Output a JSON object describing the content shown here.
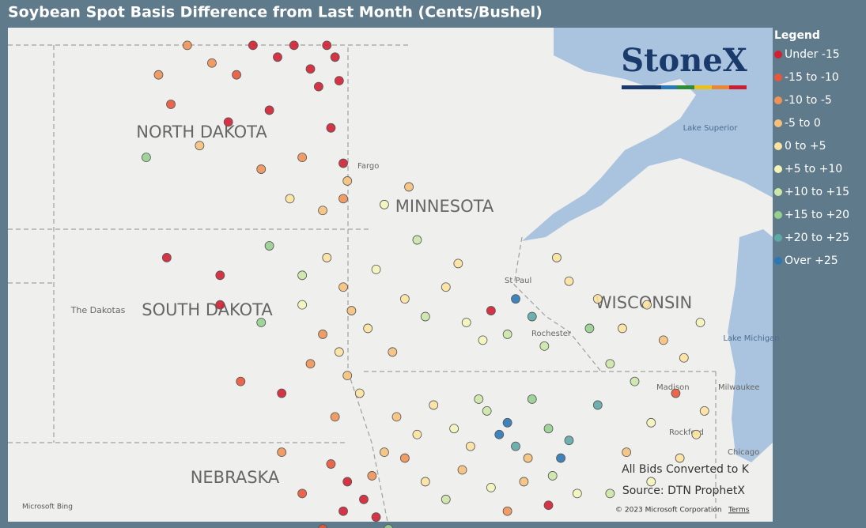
{
  "title": "Soybean Spot Basis Difference from Last Month (Cents/Bushel)",
  "legend": {
    "title": "Legend",
    "items": [
      {
        "label": "Under -15",
        "color": "#d21f32"
      },
      {
        "label": "-15 to -10",
        "color": "#e8563b"
      },
      {
        "label": "-10 to -5",
        "color": "#f09257"
      },
      {
        "label": "-5 to 0",
        "color": "#f6c07c"
      },
      {
        "label": "0 to +5",
        "color": "#fbe29e"
      },
      {
        "label": "+5 to +10",
        "color": "#f3f4b9"
      },
      {
        "label": "+10 to +15",
        "color": "#cce7a7"
      },
      {
        "label": "+15 to +20",
        "color": "#97cf8f"
      },
      {
        "label": "+20 to +25",
        "color": "#5ea8a6"
      },
      {
        "label": "Over +25",
        "color": "#2a78b4"
      }
    ]
  },
  "logo": "StoneX",
  "places": [
    "NORTH DAKOTA",
    "SOUTH DAKOTA",
    "MINNESOTA",
    "WISCONSIN",
    "NEBRASKA",
    "The Dakotas",
    "Fargo",
    "St Paul",
    "Rochester",
    "Madison",
    "Milwaukee",
    "Rockford",
    "Chicago",
    "Lake Superior",
    "Lake Michigan"
  ],
  "notes": [
    "All Bids Converted to K",
    "Source: DTN ProphetX"
  ],
  "attribution": {
    "bing": "Microsoft Bing",
    "copyright": "© 2023 Microsoft Corporation",
    "terms": "Terms"
  },
  "points": [
    [
      -97.4,
      48.9,
      0
    ],
    [
      -97.2,
      48.7,
      0
    ],
    [
      -97.8,
      48.5,
      0
    ],
    [
      -98.2,
      48.9,
      0
    ],
    [
      -97.6,
      48.2,
      0
    ],
    [
      -97.1,
      48.3,
      0
    ],
    [
      -98.6,
      48.7,
      0
    ],
    [
      -99.2,
      48.9,
      0
    ],
    [
      -99.6,
      48.4,
      1
    ],
    [
      -100.2,
      48.6,
      2
    ],
    [
      -100.8,
      48.9,
      2
    ],
    [
      -101.5,
      48.4,
      2
    ],
    [
      -101.2,
      47.9,
      1
    ],
    [
      -99.8,
      47.6,
      0
    ],
    [
      -98.8,
      47.8,
      0
    ],
    [
      -97.3,
      47.5,
      0
    ],
    [
      -97.0,
      46.9,
      0
    ],
    [
      -96.9,
      46.6,
      3
    ],
    [
      -98.0,
      47.0,
      2
    ],
    [
      -99.0,
      46.8,
      2
    ],
    [
      -100.5,
      47.2,
      3
    ],
    [
      -101.8,
      47.0,
      7
    ],
    [
      -98.3,
      46.3,
      4
    ],
    [
      -97.5,
      46.1,
      3
    ],
    [
      -97.0,
      46.3,
      2
    ],
    [
      -101.3,
      45.3,
      0
    ],
    [
      -100.0,
      45.0,
      0
    ],
    [
      -98.8,
      45.5,
      7
    ],
    [
      -98.0,
      45.0,
      6
    ],
    [
      -97.4,
      45.3,
      4
    ],
    [
      -97.0,
      44.8,
      3
    ],
    [
      -96.8,
      44.4,
      3
    ],
    [
      -97.5,
      44.0,
      2
    ],
    [
      -97.1,
      43.7,
      4
    ],
    [
      -96.9,
      43.3,
      3
    ],
    [
      -97.8,
      43.5,
      2
    ],
    [
      -98.5,
      43.0,
      0
    ],
    [
      -99.5,
      43.2,
      1
    ],
    [
      -98.0,
      44.5,
      5
    ],
    [
      -99.0,
      44.2,
      7
    ],
    [
      -100.0,
      44.5,
      0
    ],
    [
      -96.6,
      43.0,
      4
    ],
    [
      -97.2,
      42.6,
      2
    ],
    [
      -97.3,
      41.8,
      1
    ],
    [
      -96.9,
      41.5,
      0
    ],
    [
      -96.5,
      41.2,
      0
    ],
    [
      -97.0,
      41.0,
      0
    ],
    [
      -96.2,
      40.9,
      0
    ],
    [
      -96.7,
      40.6,
      0
    ],
    [
      -97.5,
      40.7,
      1
    ],
    [
      -96.3,
      41.6,
      2
    ],
    [
      -98.0,
      41.3,
      1
    ],
    [
      -95.9,
      40.7,
      7
    ],
    [
      -96.0,
      42.0,
      3
    ],
    [
      -98.5,
      42.0,
      2
    ],
    [
      -95.7,
      42.6,
      3
    ],
    [
      -95.2,
      42.3,
      4
    ],
    [
      -94.8,
      42.8,
      4
    ],
    [
      -94.3,
      42.4,
      5
    ],
    [
      -93.9,
      42.1,
      4
    ],
    [
      -93.5,
      42.7,
      6
    ],
    [
      -93.2,
      42.3,
      9
    ],
    [
      -93.0,
      42.5,
      9
    ],
    [
      -92.8,
      42.1,
      8
    ],
    [
      -92.4,
      42.9,
      7
    ],
    [
      -92.0,
      42.4,
      7
    ],
    [
      -91.7,
      41.9,
      9
    ],
    [
      -91.5,
      42.2,
      8
    ],
    [
      -91.9,
      41.6,
      6
    ],
    [
      -92.6,
      41.5,
      3
    ],
    [
      -93.4,
      41.4,
      5
    ],
    [
      -94.1,
      41.7,
      3
    ],
    [
      -95.0,
      41.5,
      4
    ],
    [
      -95.5,
      41.9,
      2
    ],
    [
      -94.5,
      41.2,
      6
    ],
    [
      -93.0,
      41.0,
      2
    ],
    [
      -92.0,
      41.1,
      0
    ],
    [
      -91.3,
      41.3,
      5
    ],
    [
      -92.5,
      41.9,
      3
    ],
    [
      -93.7,
      42.9,
      6
    ],
    [
      -95.5,
      44.6,
      4
    ],
    [
      -95.0,
      44.3,
      6
    ],
    [
      -94.5,
      44.8,
      4
    ],
    [
      -94.0,
      44.2,
      5
    ],
    [
      -93.6,
      43.9,
      5
    ],
    [
      -93.0,
      44.0,
      6
    ],
    [
      -92.8,
      44.6,
      9
    ],
    [
      -92.4,
      44.3,
      8
    ],
    [
      -93.4,
      44.4,
      0
    ],
    [
      -94.2,
      45.2,
      4
    ],
    [
      -95.2,
      45.6,
      6
    ],
    [
      -96.2,
      45.1,
      5
    ],
    [
      -96.4,
      44.1,
      4
    ],
    [
      -92.1,
      43.8,
      6
    ],
    [
      -95.8,
      43.7,
      3
    ],
    [
      -96.0,
      46.2,
      5
    ],
    [
      -95.4,
      46.5,
      3
    ],
    [
      -91.5,
      44.9,
      4
    ],
    [
      -90.8,
      44.6,
      4
    ],
    [
      -90.2,
      44.1,
      4
    ],
    [
      -89.6,
      44.5,
      4
    ],
    [
      -89.2,
      43.9,
      3
    ],
    [
      -88.7,
      43.6,
      4
    ],
    [
      -88.3,
      44.2,
      5
    ],
    [
      -90.5,
      43.5,
      6
    ],
    [
      -89.9,
      43.2,
      6
    ],
    [
      -91.0,
      44.1,
      7
    ],
    [
      -91.8,
      45.3,
      4
    ],
    [
      -88.9,
      43.0,
      1
    ],
    [
      -88.2,
      42.7,
      4
    ],
    [
      -89.5,
      42.5,
      5
    ],
    [
      -88.4,
      42.3,
      4
    ],
    [
      -90.8,
      42.8,
      8
    ],
    [
      -90.1,
      42.0,
      3
    ],
    [
      -88.8,
      41.9,
      4
    ],
    [
      -89.5,
      41.5,
      5
    ],
    [
      -90.5,
      41.3,
      6
    ]
  ]
}
